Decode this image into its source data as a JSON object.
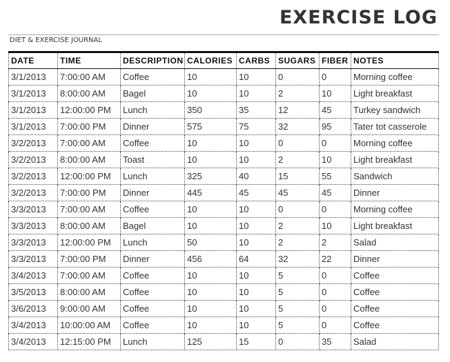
{
  "header": {
    "title": "EXERCISE LOG",
    "subtitle": "DIET & EXERCISE JOURNAL"
  },
  "table": {
    "columns": [
      "DATE",
      "TIME",
      "DESCRIPTION",
      "CALORIES",
      "CARBS",
      "SUGARS",
      "FIBER",
      "NOTES"
    ],
    "rows": [
      [
        "3/1/2013",
        "7:00:00 AM",
        "Coffee",
        10,
        10,
        0,
        0,
        "Morning coffee"
      ],
      [
        "3/1/2013",
        "8:00:00 AM",
        "Bagel",
        10,
        10,
        2,
        10,
        "Light breakfast"
      ],
      [
        "3/1/2013",
        "12:00:00 PM",
        "Lunch",
        350,
        35,
        12,
        45,
        "Turkey sandwich"
      ],
      [
        "3/1/2013",
        "7:00:00 PM",
        "Dinner",
        575,
        75,
        32,
        95,
        "Tater tot casserole"
      ],
      [
        "3/2/2013",
        "7:00:00 AM",
        "Coffee",
        10,
        10,
        0,
        0,
        "Morning coffee"
      ],
      [
        "3/2/2013",
        "8:00:00 AM",
        "Toast",
        10,
        10,
        2,
        10,
        "Light breakfast"
      ],
      [
        "3/2/2013",
        "12:00:00 PM",
        "Lunch",
        325,
        40,
        15,
        55,
        "Sandwich"
      ],
      [
        "3/2/2013",
        "7:00:00 PM",
        "Dinner",
        445,
        45,
        45,
        45,
        "Dinner"
      ],
      [
        "3/3/2013",
        "7:00:00 AM",
        "Coffee",
        10,
        10,
        0,
        0,
        "Morning coffee"
      ],
      [
        "3/3/2013",
        "8:00:00 AM",
        "Bagel",
        10,
        10,
        2,
        10,
        "Light breakfast"
      ],
      [
        "3/3/2013",
        "12:00:00 PM",
        "Lunch",
        50,
        10,
        2,
        2,
        "Salad"
      ],
      [
        "3/3/2013",
        "7:00:00 PM",
        "Dinner",
        456,
        64,
        32,
        22,
        "Dinner"
      ],
      [
        "3/4/2013",
        "7:00:00 AM",
        "Coffee",
        10,
        10,
        5,
        0,
        "Coffee"
      ],
      [
        "3/5/2013",
        "8:00:00 AM",
        "Coffee",
        10,
        10,
        5,
        0,
        "Coffee"
      ],
      [
        "3/6/2013",
        "9:00:00 AM",
        "Coffee",
        10,
        10,
        5,
        0,
        "Coffee"
      ],
      [
        "3/4/2013",
        "10:00:00 AM",
        "Coffee",
        10,
        10,
        5,
        0,
        "Coffee"
      ],
      [
        "3/4/2013",
        "12:15:00 PM",
        "Lunch",
        125,
        15,
        0,
        35,
        "Salad"
      ]
    ]
  }
}
